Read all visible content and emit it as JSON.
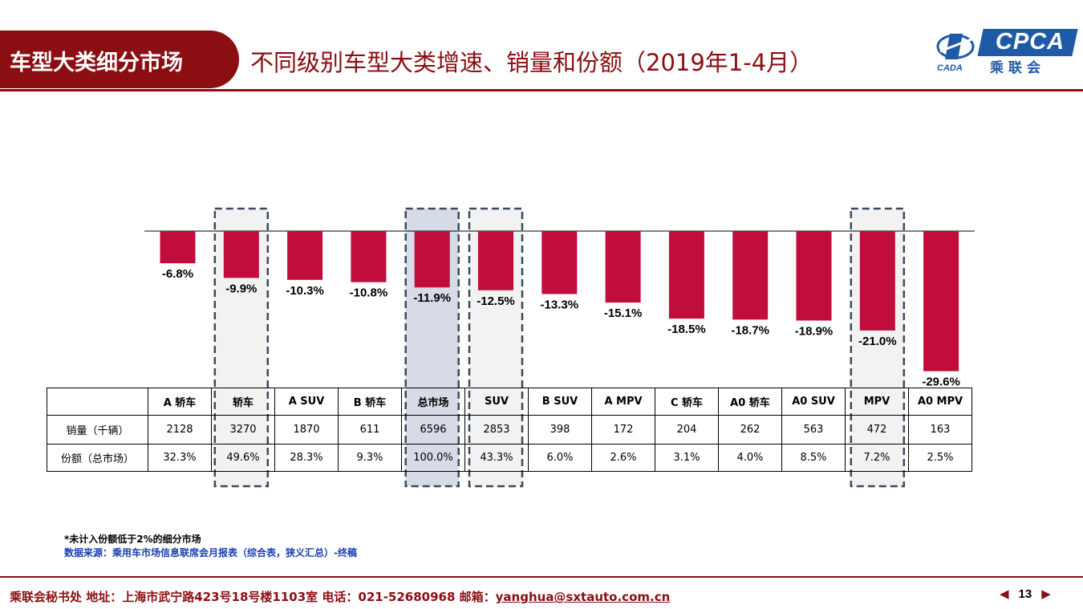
{
  "header": {
    "section": "车型大类细分市场",
    "title": "不同级别车型大类增速、销量和份额（2019年1-4月）"
  },
  "logo": {
    "text": "CPCA",
    "cn": "乘联会",
    "emblem_text": "CADA"
  },
  "chart_data": {
    "type": "bar",
    "categories": [
      "A 轿车",
      "轿车",
      "A SUV",
      "B 轿车",
      "总市场",
      "SUV",
      "B SUV",
      "A MPV",
      "C 轿车",
      "A0 轿车",
      "A0 SUV",
      "MPV",
      "A0 MPV"
    ],
    "values": [
      -6.8,
      -9.9,
      -10.3,
      -10.8,
      -11.9,
      -12.5,
      -13.3,
      -15.1,
      -18.5,
      -18.7,
      -18.9,
      -21.0,
      -29.6
    ],
    "value_labels": [
      "-6.8%",
      "-9.9%",
      "-10.3%",
      "-10.8%",
      "-11.9%",
      "-12.5%",
      "-13.3%",
      "-15.1%",
      "-18.5%",
      "-18.7%",
      "-18.9%",
      "-21.0%",
      "-29.6%"
    ],
    "ylim": [
      -30,
      0
    ],
    "highlighted": [
      "轿车",
      "总市场",
      "SUV",
      "MPV"
    ],
    "bar_color": "#c00d3b"
  },
  "table": {
    "row_labels": [
      "销量（千辆）",
      "份额（总市场）"
    ],
    "sales": [
      "2128",
      "3270",
      "1870",
      "611",
      "6596",
      "2853",
      "398",
      "172",
      "204",
      "262",
      "563",
      "472",
      "163"
    ],
    "share": [
      "32.3%",
      "49.6%",
      "28.3%",
      "9.3%",
      "100.0%",
      "43.3%",
      "6.0%",
      "2.6%",
      "3.1%",
      "4.0%",
      "8.5%",
      "7.2%",
      "2.5%"
    ]
  },
  "notes": {
    "line1": "*未计入份额低于2%的细分市场",
    "line2": "数据来源：乘用车市场信息联席会月报表（综合表，狭义汇总）-终稿"
  },
  "footer": {
    "info": "乘联会秘书处   地址：上海市武宁路423号18号楼1103室  电话：021-52680968   邮箱：",
    "email": "yanghua@sxtauto.com.cn",
    "page": "13",
    "prev": "◀",
    "next": "▶"
  }
}
